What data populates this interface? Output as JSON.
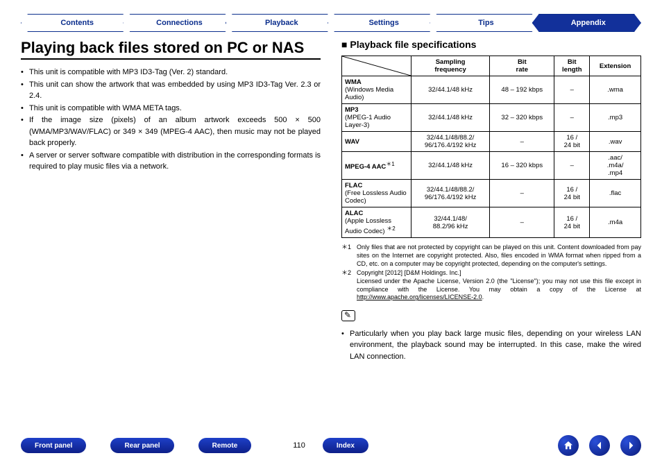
{
  "tabs": [
    "Contents",
    "Connections",
    "Playback",
    "Settings",
    "Tips",
    "Appendix"
  ],
  "activeTab": 5,
  "title": "Playing back files stored on PC or NAS",
  "bullets": [
    "This unit is compatible with MP3 ID3-Tag (Ver. 2) standard.",
    "This unit can show the artwork that was embedded by using MP3 ID3-Tag Ver. 2.3 or 2.4.",
    "This unit is compatible with WMA META tags.",
    "If the image size (pixels) of an album artwork exceeds 500 × 500 (WMA/MP3/WAV/FLAC) or 349 × 349 (MPEG-4 AAC), then music may not be played back properly.",
    "A server or server software compatible with distribution in the corresponding formats is required to play music files via a network."
  ],
  "spec_heading": "Playback file specifications",
  "table": {
    "columns": [
      "",
      "Sampling frequency",
      "Bit rate",
      "Bit length",
      "Extension"
    ],
    "rows": [
      {
        "fmt": "<b>WMA</b><br>(Windows Media Audio)",
        "freq": "32/44.1/48 kHz",
        "bitrate": "48 – 192 kbps",
        "bitlen": "–",
        "ext": ".wma"
      },
      {
        "fmt": "<b>MP3</b><br>(MPEG-1 Audio Layer-3)",
        "freq": "32/44.1/48 kHz",
        "bitrate": "32 – 320 kbps",
        "bitlen": "–",
        "ext": ".mp3"
      },
      {
        "fmt": "<b>WAV</b>",
        "freq": "32/44.1/48/88.2/<br>96/176.4/192 kHz",
        "bitrate": "–",
        "bitlen": "16 /<br>24 bit",
        "ext": ".wav"
      },
      {
        "fmt": "<b>MPEG-4 AAC</b><sup>＊1</sup>",
        "freq": "32/44.1/48 kHz",
        "bitrate": "16 – 320 kbps",
        "bitlen": "–",
        "ext": ".aac/<br>.m4a/<br>.mp4"
      },
      {
        "fmt": "<b>FLAC</b><br>(Free Lossless Audio Codec)",
        "freq": "32/44.1/48/88.2/<br>96/176.4/192 kHz",
        "bitrate": "–",
        "bitlen": "16 /<br>24 bit",
        "ext": ".flac"
      },
      {
        "fmt": "<b>ALAC</b><br>(Apple Lossless Audio Codec) <sup>＊2</sup>",
        "freq": "32/44.1/48/<br>88.2/96 kHz",
        "bitrate": "–",
        "bitlen": "16 /<br>24 bit",
        "ext": ".m4a"
      }
    ]
  },
  "footnotes": [
    {
      "mark": "＊1",
      "text": "Only files that are not protected by copyright can be played on this unit. Content downloaded from pay sites on the Internet are copyright protected. Also, files encoded in WMA format when ripped from a CD, etc. on a computer may be copyright protected, depending on the computer's settings."
    },
    {
      "mark": "＊2",
      "text": "Copyright [2012] [D&M Holdings. Inc.]<br>Licensed under the Apache License, Version 2.0 (the \"License\"); you may not use this file except in compliance with the License. You may obtain a copy of the License at <a href='#'>http://www.apache.org/licenses/LICENSE-2.0</a>."
    }
  ],
  "note_bullet": "Particularly when you play back large music files, depending on your wireless LAN environment, the playback sound may be interrupted. In this case, make the wired LAN connection.",
  "footer": {
    "pills": [
      "Front panel",
      "Rear panel",
      "Remote"
    ],
    "page": "110",
    "index": "Index"
  }
}
